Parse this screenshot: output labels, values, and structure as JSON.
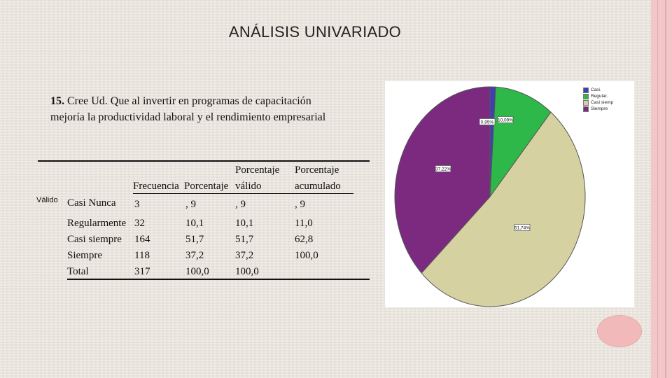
{
  "slide": {
    "title": "ANÁLISIS UNIVARIADO",
    "question_number": "15.",
    "question_text": " Cree Ud.  Que al invertir en programas de capacitación mejoría la productividad laboral y el rendimiento empresarial"
  },
  "table": {
    "headers": {
      "frecuencia": "Frecuencia",
      "porcentaje": "Porcentaje",
      "porcentaje_valido_line1": "Porcentaje",
      "porcentaje_valido_line2": "válido",
      "porcentaje_acumulado_line1": "Porcentaje",
      "porcentaje_acumulado_line2": "acumulado"
    },
    "row_group_label": "Válido",
    "rows": [
      {
        "label": "Casi Nunca",
        "frecuencia": "3",
        "porcentaje": ", 9",
        "valido": ", 9",
        "acumulado": ", 9"
      },
      {
        "label": "Regularmente",
        "frecuencia": "32",
        "porcentaje": "10,1",
        "valido": "10,1",
        "acumulado": "11,0"
      },
      {
        "label": "Casi siempre",
        "frecuencia": "164",
        "porcentaje": "51,7",
        "valido": "51,7",
        "acumulado": "62,8"
      },
      {
        "label": "Siempre",
        "frecuencia": "118",
        "porcentaje": "37,2",
        "valido": "37,2",
        "acumulado": "100,0"
      },
      {
        "label": "Total",
        "frecuencia": "317",
        "porcentaje": "100,0",
        "valido": "100,0",
        "acumulado": ""
      }
    ]
  },
  "chart_data": {
    "type": "pie",
    "title": "",
    "slices": [
      {
        "name": "Casi.",
        "value": 0.95,
        "label": "0,95%",
        "color": "#3f3fb0"
      },
      {
        "name": "Regular.",
        "value": 10.09,
        "label": "10,09%",
        "color": "#2fb84a"
      },
      {
        "name": "Casi siemp",
        "value": 51.74,
        "label": "51,74%",
        "color": "#d6d1a0"
      },
      {
        "name": "Siempre",
        "value": 37.22,
        "label": "37,22%",
        "color": "#7b2a80"
      }
    ],
    "legend_position": "top-right"
  }
}
